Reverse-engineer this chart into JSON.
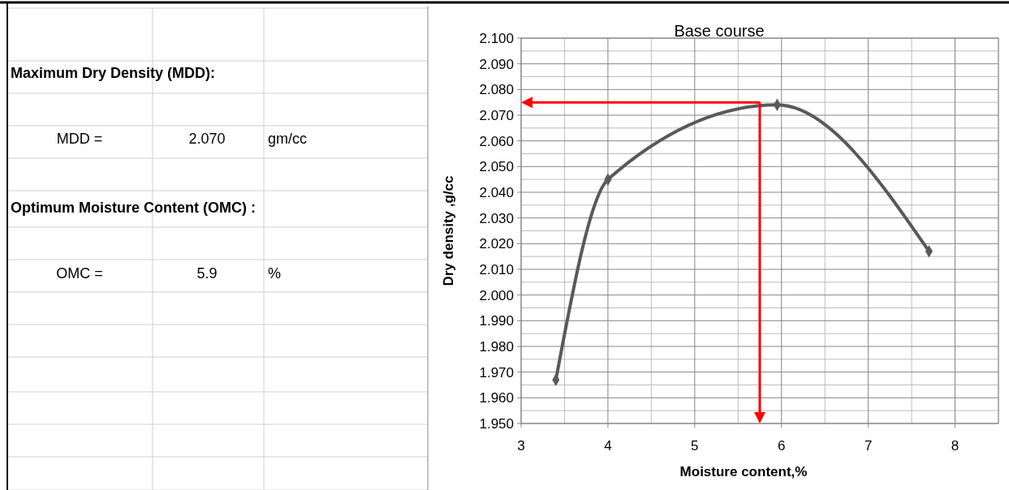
{
  "chart_data": [
    {
      "type": "other",
      "annotations": [
        "Maximum Dry Density (MDD):",
        "MDD =",
        "2.070",
        "gm/cc",
        "Optimum Moisture Content (OMC) :",
        "OMC =",
        "5.9",
        "%"
      ]
    },
    {
      "type": "line",
      "title": "Base course",
      "xlabel": "Moisture content,%",
      "ylabel": "Dry density ,g/cc",
      "x": [
        3.4,
        4.0,
        5.95,
        7.7
      ],
      "series": [
        {
          "color": "#595959",
          "values": [
            1.967,
            2.045,
            2.074,
            2.017
          ]
        }
      ],
      "xlim": [
        3,
        8.5
      ],
      "xticks": [
        3,
        4,
        5,
        6,
        7,
        8
      ],
      "ylim": [
        1.95,
        2.1
      ],
      "yticks": [
        {
          "value": 1.95,
          "label": "1.950"
        },
        {
          "value": 1.96,
          "label": "1.960"
        },
        {
          "value": 1.97,
          "label": "1.970"
        },
        {
          "value": 1.98,
          "label": "1.980"
        },
        {
          "value": 1.99,
          "label": "1.990"
        },
        {
          "value": 2.0,
          "label": "2.000"
        },
        {
          "value": 2.01,
          "label": "2.010"
        },
        {
          "value": 2.02,
          "label": "2.020"
        },
        {
          "value": 2.03,
          "label": "2.030"
        },
        {
          "value": 2.04,
          "label": "2.040"
        },
        {
          "value": 2.05,
          "label": "2.050"
        },
        {
          "value": 2.06,
          "label": "2.060"
        },
        {
          "value": 2.07,
          "label": "2.070"
        },
        {
          "value": 2.08,
          "label": "2.080"
        },
        {
          "value": 2.09,
          "label": "2.090"
        },
        {
          "value": 2.1,
          "label": "2.100"
        }
      ],
      "grid": true,
      "marker": "diamond",
      "line_style": "solid",
      "ref_lines": [
        {
          "axis": "y",
          "value": 2.075,
          "color": "#ff0000"
        },
        {
          "axis": "x",
          "value": 5.75,
          "color": "#ff0000"
        }
      ]
    }
  ]
}
